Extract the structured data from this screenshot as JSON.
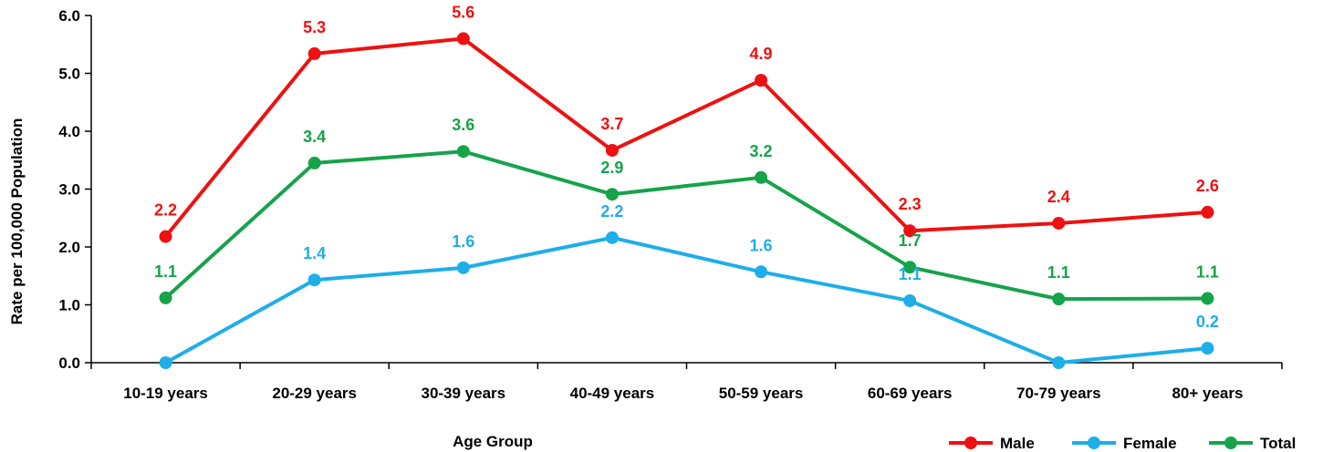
{
  "chart_data": {
    "type": "line",
    "title": "",
    "xlabel": "Age Group",
    "ylabel": "Rate per 100,000 Population",
    "ylim": [
      0,
      6
    ],
    "ytick_labels": [
      "0.0",
      "1.0",
      "2.0",
      "3.0",
      "4.0",
      "5.0",
      "6.0"
    ],
    "categories": [
      "10-19 years",
      "20-29 years",
      "30-39 years",
      "40-49 years",
      "50-59 years",
      "60-69 years",
      "70-79 years",
      "80+ years"
    ],
    "grid": false,
    "legend_position": "bottom-right",
    "series": [
      {
        "name": "Male",
        "color": "#ee1111",
        "values": [
          2.18,
          5.34,
          5.6,
          3.67,
          4.88,
          2.28,
          2.41,
          2.6
        ],
        "labels": [
          "2.2",
          "5.3",
          "5.6",
          "3.7",
          "4.9",
          "2.3",
          "2.4",
          "2.6"
        ]
      },
      {
        "name": "Female",
        "color": "#1eaee8",
        "values": [
          0.0,
          1.43,
          1.64,
          2.16,
          1.57,
          1.07,
          0.0,
          0.25
        ],
        "labels": [
          "",
          "1.4",
          "1.6",
          "2.2",
          "1.6",
          "1.1",
          "",
          "0.2"
        ]
      },
      {
        "name": "Total",
        "color": "#16a34a",
        "values": [
          1.12,
          3.45,
          3.65,
          2.91,
          3.2,
          1.65,
          1.1,
          1.11
        ],
        "labels": [
          "1.1",
          "3.4",
          "3.6",
          "2.9",
          "3.2",
          "1.7",
          "1.1",
          "1.1"
        ]
      }
    ]
  }
}
